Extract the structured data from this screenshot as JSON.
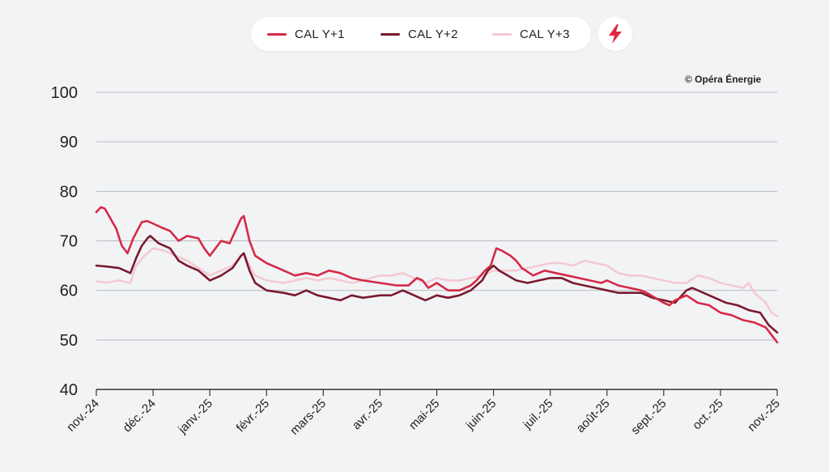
{
  "legend": {
    "items": [
      {
        "label": "CAL Y+1",
        "color": "#d42a47"
      },
      {
        "label": "CAL Y+2",
        "color": "#7a1a2e"
      },
      {
        "label": "CAL Y+3",
        "color": "#f4c9d2"
      }
    ]
  },
  "toolbar": {
    "flash_icon": "lightning-bolt-icon",
    "flash_color": "#e0283f"
  },
  "credit": "© Opéra Énergie",
  "chart_data": {
    "type": "line",
    "title": "",
    "xlabel": "",
    "ylabel": "",
    "ylim": [
      40,
      100
    ],
    "yticks": [
      "100",
      "90",
      "80",
      "70",
      "60",
      "50",
      "40"
    ],
    "xticks": [
      "nov.-24",
      "déc.-24",
      "janv.-25",
      "févr.-25",
      "mars-25",
      "avr.-25",
      "mai-25",
      "juin-25",
      "juil.-25",
      "août-25",
      "sept.-25",
      "oct.-25",
      "nov.-25"
    ],
    "grid": true,
    "legend_position": "top-center",
    "series": [
      {
        "name": "CAL Y+1",
        "color": "#d42a47",
        "points": [
          [
            0,
            75.8
          ],
          [
            0.08,
            76.8
          ],
          [
            0.15,
            76.5
          ],
          [
            0.25,
            74.5
          ],
          [
            0.35,
            72.5
          ],
          [
            0.45,
            69
          ],
          [
            0.55,
            67.5
          ],
          [
            0.65,
            70.5
          ],
          [
            0.8,
            73.8
          ],
          [
            0.9,
            74
          ],
          [
            1.15,
            72.7
          ],
          [
            1.3,
            72
          ],
          [
            1.45,
            70
          ],
          [
            1.6,
            71
          ],
          [
            1.8,
            70.5
          ],
          [
            1.9,
            68.5
          ],
          [
            2.0,
            67
          ],
          [
            2.1,
            68.5
          ],
          [
            2.2,
            70
          ],
          [
            2.35,
            69.5
          ],
          [
            2.45,
            72
          ],
          [
            2.55,
            74.5
          ],
          [
            2.6,
            75
          ],
          [
            2.7,
            70
          ],
          [
            2.8,
            67
          ],
          [
            3.0,
            65.5
          ],
          [
            3.2,
            64.5
          ],
          [
            3.5,
            63
          ],
          [
            3.7,
            63.5
          ],
          [
            3.9,
            63
          ],
          [
            4.1,
            64
          ],
          [
            4.3,
            63.5
          ],
          [
            4.5,
            62.5
          ],
          [
            4.7,
            62
          ],
          [
            5.0,
            61.5
          ],
          [
            5.3,
            61
          ],
          [
            5.5,
            61
          ],
          [
            5.65,
            62.5
          ],
          [
            5.75,
            62
          ],
          [
            5.85,
            60.5
          ],
          [
            6.0,
            61.5
          ],
          [
            6.2,
            60
          ],
          [
            6.4,
            60
          ],
          [
            6.6,
            61
          ],
          [
            6.7,
            62
          ],
          [
            6.85,
            64
          ],
          [
            6.95,
            65
          ],
          [
            7.05,
            68.5
          ],
          [
            7.15,
            68
          ],
          [
            7.3,
            67
          ],
          [
            7.4,
            66
          ],
          [
            7.5,
            64.5
          ],
          [
            7.7,
            63
          ],
          [
            7.9,
            64
          ],
          [
            8.1,
            63.5
          ],
          [
            8.3,
            63
          ],
          [
            8.5,
            62.5
          ],
          [
            8.7,
            62
          ],
          [
            8.9,
            61.5
          ],
          [
            9.0,
            62
          ],
          [
            9.2,
            61
          ],
          [
            9.4,
            60.5
          ],
          [
            9.6,
            60
          ],
          [
            9.7,
            59.5
          ],
          [
            10.0,
            57.5
          ],
          [
            10.1,
            57
          ],
          [
            10.2,
            58
          ],
          [
            10.4,
            59
          ],
          [
            10.6,
            57.5
          ],
          [
            10.8,
            57
          ],
          [
            11.0,
            55.5
          ],
          [
            11.2,
            55
          ],
          [
            11.4,
            54
          ],
          [
            11.6,
            53.5
          ],
          [
            11.8,
            52.5
          ],
          [
            11.9,
            51
          ],
          [
            12.0,
            49.5
          ]
        ]
      },
      {
        "name": "CAL Y+2",
        "color": "#7a1a2e",
        "points": [
          [
            0,
            65
          ],
          [
            0.2,
            64.8
          ],
          [
            0.4,
            64.5
          ],
          [
            0.6,
            63.5
          ],
          [
            0.7,
            66.5
          ],
          [
            0.8,
            69
          ],
          [
            0.9,
            70.5
          ],
          [
            0.95,
            71
          ],
          [
            1.1,
            69.5
          ],
          [
            1.3,
            68.5
          ],
          [
            1.45,
            66
          ],
          [
            1.6,
            65
          ],
          [
            1.8,
            64
          ],
          [
            2.0,
            62
          ],
          [
            2.2,
            63
          ],
          [
            2.4,
            64.5
          ],
          [
            2.55,
            67
          ],
          [
            2.6,
            67.5
          ],
          [
            2.7,
            64
          ],
          [
            2.8,
            61.5
          ],
          [
            3.0,
            60
          ],
          [
            3.3,
            59.5
          ],
          [
            3.5,
            59
          ],
          [
            3.7,
            60
          ],
          [
            3.9,
            59
          ],
          [
            4.1,
            58.5
          ],
          [
            4.3,
            58
          ],
          [
            4.5,
            59
          ],
          [
            4.7,
            58.5
          ],
          [
            5.0,
            59
          ],
          [
            5.2,
            59
          ],
          [
            5.4,
            60
          ],
          [
            5.6,
            59
          ],
          [
            5.8,
            58
          ],
          [
            6.0,
            59
          ],
          [
            6.2,
            58.5
          ],
          [
            6.4,
            59
          ],
          [
            6.6,
            60
          ],
          [
            6.8,
            62
          ],
          [
            6.9,
            64
          ],
          [
            7.0,
            65
          ],
          [
            7.1,
            64
          ],
          [
            7.25,
            63
          ],
          [
            7.4,
            62
          ],
          [
            7.6,
            61.5
          ],
          [
            7.8,
            62
          ],
          [
            8.0,
            62.5
          ],
          [
            8.2,
            62.5
          ],
          [
            8.4,
            61.5
          ],
          [
            8.6,
            61
          ],
          [
            8.8,
            60.5
          ],
          [
            9.0,
            60
          ],
          [
            9.2,
            59.5
          ],
          [
            9.4,
            59.5
          ],
          [
            9.6,
            59.5
          ],
          [
            9.8,
            58.5
          ],
          [
            10.0,
            58
          ],
          [
            10.2,
            57.5
          ],
          [
            10.4,
            60
          ],
          [
            10.5,
            60.5
          ],
          [
            10.7,
            59.5
          ],
          [
            10.9,
            58.5
          ],
          [
            11.1,
            57.5
          ],
          [
            11.3,
            57
          ],
          [
            11.5,
            56
          ],
          [
            11.7,
            55.5
          ],
          [
            11.85,
            53
          ],
          [
            12.0,
            51.5
          ]
        ]
      },
      {
        "name": "CAL Y+3",
        "color": "#f4c9d2",
        "points": [
          [
            0,
            61.8
          ],
          [
            0.2,
            61.6
          ],
          [
            0.4,
            62
          ],
          [
            0.6,
            61.5
          ],
          [
            0.7,
            65
          ],
          [
            0.85,
            67
          ],
          [
            1.0,
            68.5
          ],
          [
            1.2,
            68
          ],
          [
            1.4,
            67
          ],
          [
            1.6,
            66
          ],
          [
            1.8,
            64.5
          ],
          [
            2.0,
            63
          ],
          [
            2.2,
            64
          ],
          [
            2.4,
            65
          ],
          [
            2.55,
            67
          ],
          [
            2.6,
            67.5
          ],
          [
            2.7,
            65
          ],
          [
            2.8,
            63
          ],
          [
            3.0,
            62
          ],
          [
            3.3,
            61.5
          ],
          [
            3.5,
            62
          ],
          [
            3.7,
            62.5
          ],
          [
            3.9,
            62
          ],
          [
            4.1,
            62.5
          ],
          [
            4.3,
            62
          ],
          [
            4.5,
            61.5
          ],
          [
            4.7,
            62
          ],
          [
            5.0,
            63
          ],
          [
            5.2,
            63
          ],
          [
            5.4,
            63.5
          ],
          [
            5.6,
            62.5
          ],
          [
            5.8,
            61.5
          ],
          [
            6.0,
            62.5
          ],
          [
            6.2,
            62
          ],
          [
            6.4,
            62
          ],
          [
            6.6,
            62.5
          ],
          [
            6.8,
            63
          ],
          [
            7.0,
            64
          ],
          [
            7.2,
            64
          ],
          [
            7.4,
            64
          ],
          [
            7.6,
            64.5
          ],
          [
            7.8,
            65
          ],
          [
            8.0,
            65.5
          ],
          [
            8.2,
            65.5
          ],
          [
            8.4,
            65
          ],
          [
            8.6,
            66
          ],
          [
            8.8,
            65.5
          ],
          [
            9.0,
            65
          ],
          [
            9.2,
            63.5
          ],
          [
            9.4,
            63
          ],
          [
            9.6,
            63
          ],
          [
            9.8,
            62.5
          ],
          [
            10.0,
            62
          ],
          [
            10.2,
            61.5
          ],
          [
            10.4,
            61.5
          ],
          [
            10.6,
            63
          ],
          [
            10.8,
            62.5
          ],
          [
            11.0,
            61.5
          ],
          [
            11.2,
            61
          ],
          [
            11.4,
            60.5
          ],
          [
            11.5,
            61.5
          ],
          [
            11.6,
            59.5
          ],
          [
            11.8,
            57.5
          ],
          [
            11.9,
            55.5
          ],
          [
            12.0,
            54.8
          ]
        ]
      }
    ]
  }
}
